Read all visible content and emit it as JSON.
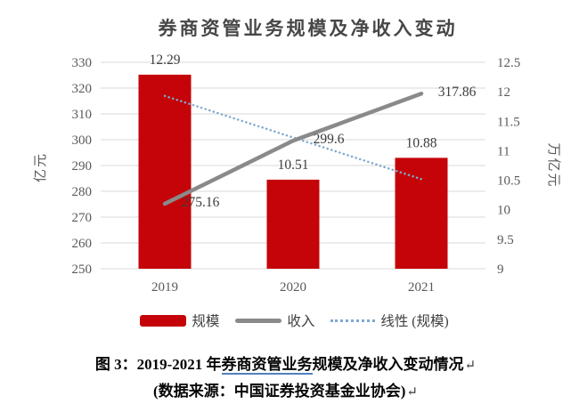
{
  "chart_data": {
    "type": "combo",
    "title": "券商资管业务规模及净收入变动",
    "categories": [
      "2019",
      "2020",
      "2021"
    ],
    "series": [
      {
        "name": "规模",
        "type": "bar",
        "axis": "right",
        "values": [
          12.29,
          10.51,
          10.88
        ],
        "labels": [
          "12.29",
          "10.51",
          "10.88"
        ],
        "color": "#c40408"
      },
      {
        "name": "收入",
        "type": "line",
        "axis": "left",
        "values": [
          275.16,
          299.6,
          317.86
        ],
        "labels": [
          "275.16",
          "299.6",
          "317.86"
        ],
        "color": "#8a8a8a"
      },
      {
        "name": "线性 (规模)",
        "type": "trend",
        "axis": "right",
        "endpoints": [
          11.93,
          10.52
        ],
        "style": "dotted",
        "color": "#7fa8ce"
      }
    ],
    "left_axis": {
      "title": "亿元",
      "min": 250,
      "max": 330,
      "ticks": [
        "330",
        "320",
        "310",
        "300",
        "290",
        "280",
        "270",
        "260",
        "250"
      ]
    },
    "right_axis": {
      "title": "万亿元",
      "min": 9,
      "max": 12.5,
      "ticks": [
        "12.5",
        "12",
        "11.5",
        "11",
        "10.5",
        "10",
        "9.5",
        "9"
      ]
    },
    "legend_position": "bottom",
    "gridlines": "horizontal",
    "colors": {
      "gridline": "#d9d9d9",
      "tick_text": "#595959",
      "label_text": "#3d3d3d"
    }
  },
  "caption": {
    "line1_prefix": "图 3：2019-2021 年",
    "line1_underlined": "券商资管业务",
    "line1_suffix": "规模及净收入变动情况",
    "line2": "(数据来源：中国证券投资基金业协会)",
    "return_mark": "↵",
    "underline_color": "#4f81bd"
  }
}
